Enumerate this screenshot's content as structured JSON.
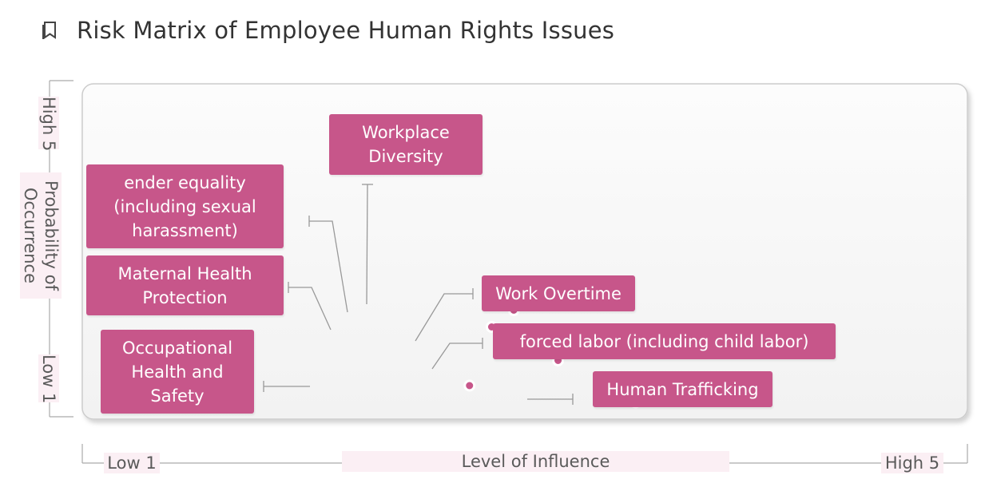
{
  "header": {
    "title": "Risk Matrix of Employee Human Rights Issues",
    "icon": "bookmark-icon"
  },
  "colors": {
    "accent": "#c7568a",
    "label_text": "#ffffff",
    "leader_line": "#999999",
    "axis_line": "#aaaaaa",
    "axis_label_bg": "#fbeff4",
    "panel_border": "#cccccc"
  },
  "chart_data": {
    "type": "scatter",
    "title": "Risk Matrix of Employee Human Rights Issues",
    "xlabel": "Level of Influence",
    "ylabel": "Probability of Occurrence",
    "x_axis": {
      "low_label": "Low 1",
      "high_label": "High 5",
      "range": [
        1,
        5
      ]
    },
    "y_axis": {
      "low_label": "Low 1",
      "high_label": "High 5",
      "range": [
        1,
        5
      ]
    },
    "grid": false,
    "legend": "none",
    "points": [
      {
        "label": "Workplace\nDiversity",
        "x": 3.0,
        "y": 2.5
      },
      {
        "label": "ender equality\n(including sexual\nharassment)",
        "x": 2.95,
        "y": 2.3
      },
      {
        "label": "Maternal Health\nProtection",
        "x": 2.85,
        "y": 2.1
      },
      {
        "label": "Work Overtime",
        "x": 3.2,
        "y": 1.85
      },
      {
        "label": "forced labor (including child labor)",
        "x": 3.15,
        "y": 1.7
      },
      {
        "label": "Occupational\nHealth and\nSafety",
        "x": 2.75,
        "y": 1.4
      },
      {
        "label": "Human Trafficking",
        "x": 3.5,
        "y": 1.2
      }
    ]
  }
}
